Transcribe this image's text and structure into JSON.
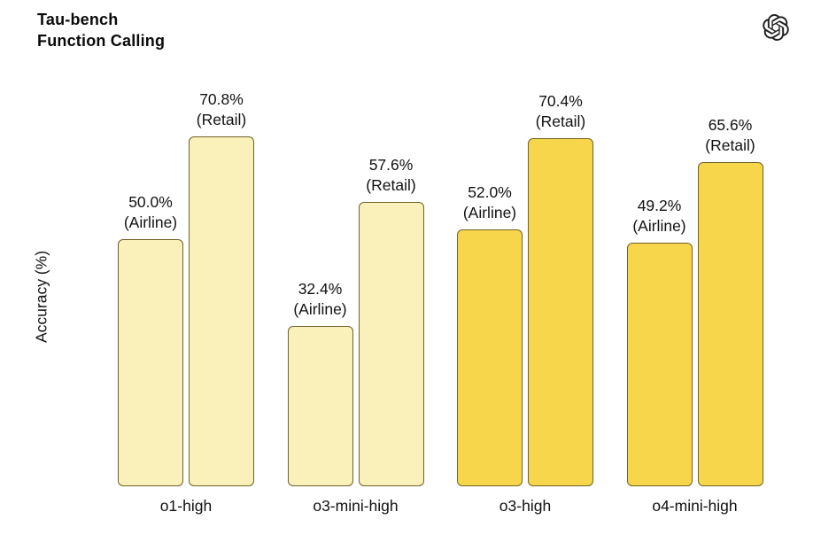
{
  "header": {
    "title_line1": "Tau-bench",
    "title_line2": "Function Calling",
    "logo_icon": "openai-logo"
  },
  "chart_data": {
    "type": "bar",
    "title": "Tau-bench Function Calling",
    "ylabel": "Accuracy (%)",
    "ylim": [
      0,
      75
    ],
    "grid": false,
    "legend_position": "none",
    "categories": [
      "o1-high",
      "o3-mini-high",
      "o3-high",
      "o4-mini-high"
    ],
    "series": [
      {
        "name": "Airline",
        "values": [
          50.0,
          32.4,
          52.0,
          49.2
        ],
        "value_labels": [
          "50.0%",
          "32.4%",
          "52.0%",
          "49.2%"
        ],
        "label_suffix": "(Airline)"
      },
      {
        "name": "Retail",
        "values": [
          70.8,
          57.6,
          70.4,
          65.6
        ],
        "value_labels": [
          "70.8%",
          "57.6%",
          "70.4%",
          "65.6%"
        ],
        "label_suffix": "(Retail)"
      }
    ],
    "bar_fill_by_category": [
      "#FAF0B9",
      "#FAF0B9",
      "#F8D64B",
      "#F8D64B"
    ],
    "bar_border_color": "#6E6228",
    "text_color": "#111111",
    "background": "#FFFFFF"
  }
}
